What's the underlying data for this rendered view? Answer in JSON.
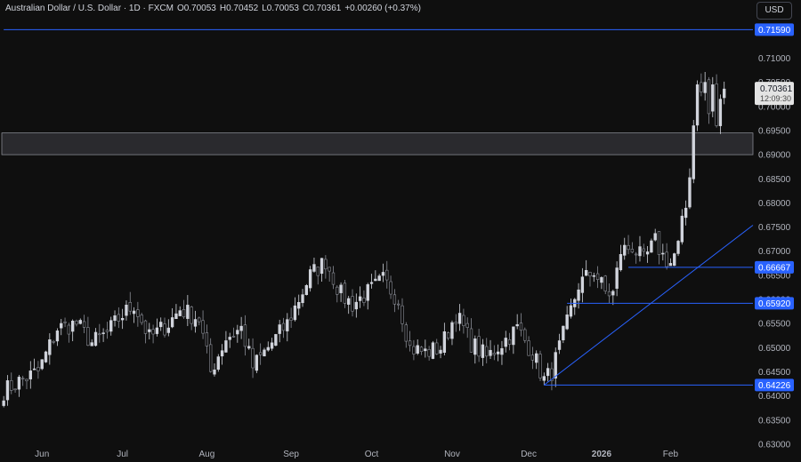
{
  "header": {
    "symbol": "Australian Dollar / U.S. Dollar · 1D · FXCM",
    "open": "O0.70053",
    "high": "H0.70452",
    "low": "L0.70053",
    "close": "C0.70361",
    "change": "+0.00260 (+0.37%)"
  },
  "currency_button": "USD",
  "colors": {
    "background": "#0f0f0f",
    "candle": "#d1d4dc",
    "candle_down": "#8a8d96",
    "line": "#2962ff",
    "badge_blue": "#2962ff",
    "axis_text": "#b2b5be"
  },
  "chart_data": {
    "type": "candlestick",
    "title": "Australian Dollar / U.S. Dollar · 1D · FXCM",
    "xlabel": "",
    "ylabel": "",
    "ylim": [
      0.63,
      0.718
    ],
    "grid": false,
    "y_ticks": [
      "0.71000",
      "0.70500",
      "0.70000",
      "0.69500",
      "0.69000",
      "0.68500",
      "0.68000",
      "0.67500",
      "0.67000",
      "0.66500",
      "0.66000",
      "0.65500",
      "0.65000",
      "0.64500",
      "0.64000",
      "0.63500",
      "0.63000"
    ],
    "x_tick_labels": [
      "Jun",
      "Jul",
      "Aug",
      "Sep",
      "Oct",
      "Nov",
      "Dec",
      "2026",
      "Feb"
    ],
    "x_tick_index": [
      10,
      31,
      53,
      75,
      96,
      117,
      137,
      156,
      174
    ],
    "n_bars": 180,
    "level_badges": [
      {
        "label": "0.71590",
        "value": 0.7159,
        "from_index": 0
      },
      {
        "label": "0.66667",
        "value": 0.66667,
        "from_index": 163
      },
      {
        "label": "0.65920",
        "value": 0.6592,
        "from_index": 147
      },
      {
        "label": "0.64226",
        "value": 0.64226,
        "from_index": 141
      }
    ],
    "current_price": {
      "label": "0.70361",
      "countdown": "12:09:30",
      "value": 0.70361
    },
    "zone": {
      "low": 0.69,
      "high": 0.6945
    },
    "trendline": {
      "from": [
        141,
        0.64226
      ],
      "to": [
        210,
        0.6842
      ]
    },
    "anchors": [
      [
        0,
        0.641
      ],
      [
        4,
        0.643
      ],
      [
        9,
        0.645
      ],
      [
        14,
        0.654
      ],
      [
        19,
        0.655
      ],
      [
        23,
        0.651
      ],
      [
        27,
        0.653
      ],
      [
        30,
        0.656
      ],
      [
        34,
        0.659
      ],
      [
        38,
        0.652
      ],
      [
        43,
        0.655
      ],
      [
        46,
        0.658
      ],
      [
        51,
        0.656
      ],
      [
        54,
        0.645
      ],
      [
        58,
        0.652
      ],
      [
        62,
        0.654
      ],
      [
        65,
        0.646
      ],
      [
        70,
        0.651
      ],
      [
        74,
        0.655
      ],
      [
        80,
        0.665
      ],
      [
        84,
        0.668
      ],
      [
        88,
        0.661
      ],
      [
        91,
        0.659
      ],
      [
        96,
        0.662
      ],
      [
        99,
        0.664
      ],
      [
        103,
        0.66
      ],
      [
        106,
        0.65
      ],
      [
        110,
        0.649
      ],
      [
        114,
        0.65
      ],
      [
        118,
        0.657
      ],
      [
        122,
        0.651
      ],
      [
        126,
        0.648
      ],
      [
        130,
        0.651
      ],
      [
        134,
        0.654
      ],
      [
        138,
        0.649
      ],
      [
        141,
        0.6433
      ],
      [
        143,
        0.645
      ],
      [
        147,
        0.655
      ],
      [
        150,
        0.663
      ],
      [
        154,
        0.666
      ],
      [
        157,
        0.6615
      ],
      [
        159,
        0.6612
      ],
      [
        161,
        0.67
      ],
      [
        164,
        0.671
      ],
      [
        167,
        0.668
      ],
      [
        170,
        0.672
      ],
      [
        172,
        0.669
      ],
      [
        174,
        0.6675
      ],
      [
        176,
        0.671
      ],
      [
        177,
        0.6755
      ],
      [
        178,
        0.679
      ],
      [
        179,
        0.6865
      ],
      [
        180,
        0.696
      ],
      [
        181,
        0.7045
      ],
      [
        182,
        0.703
      ],
      [
        183,
        0.705
      ],
      [
        184,
        0.6985
      ],
      [
        185,
        0.7045
      ],
      [
        186,
        0.696
      ],
      [
        187,
        0.7015
      ],
      [
        188,
        0.7036
      ]
    ]
  }
}
